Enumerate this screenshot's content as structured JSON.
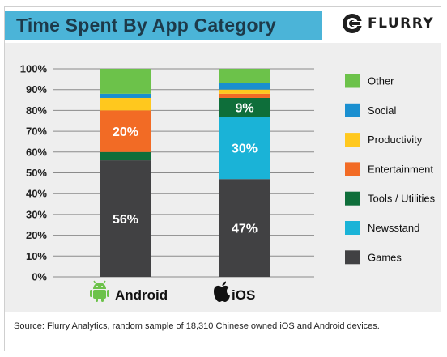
{
  "header": {
    "title": "Time Spent By App Category",
    "logo_text": "FLURRY"
  },
  "source": "Source: Flurry Analytics, random sample of 18,310 Chinese owned iOS and Android devices.",
  "icons": {
    "android": "android-icon",
    "ios": "apple-icon",
    "logo": "flurry-logo-icon"
  },
  "colors": {
    "Other": "#6cc24a",
    "Social": "#1a8fd0",
    "Productivity": "#ffc81e",
    "Entertainment": "#f26b25",
    "Tools / Utilities": "#0e6e3a",
    "Newsstand": "#1ab3d7",
    "Games": "#414143"
  },
  "chart_data": {
    "type": "bar",
    "stacked": true,
    "categories": [
      "Android",
      "iOS"
    ],
    "ylim": [
      0,
      100
    ],
    "yticks": [
      "0%",
      "10%",
      "20%",
      "30%",
      "40%",
      "50%",
      "60%",
      "70%",
      "80%",
      "90%",
      "100%"
    ],
    "grid": true,
    "legend_position": "right",
    "legend_order": [
      "Other",
      "Social",
      "Productivity",
      "Entertainment",
      "Tools / Utilities",
      "Newsstand",
      "Games"
    ],
    "series": [
      {
        "name": "Games",
        "values": [
          56,
          47
        ],
        "labels": [
          "56%",
          "47%"
        ]
      },
      {
        "name": "Newsstand",
        "values": [
          0,
          30
        ],
        "labels": [
          "",
          "30%"
        ]
      },
      {
        "name": "Tools / Utilities",
        "values": [
          4,
          9
        ],
        "labels": [
          "",
          "9%"
        ]
      },
      {
        "name": "Entertainment",
        "values": [
          20,
          2
        ],
        "labels": [
          "20%",
          ""
        ]
      },
      {
        "name": "Productivity",
        "values": [
          6,
          2
        ],
        "labels": [
          "",
          ""
        ]
      },
      {
        "name": "Social",
        "values": [
          2,
          3
        ],
        "labels": [
          "",
          ""
        ]
      },
      {
        "name": "Other",
        "values": [
          12,
          7
        ],
        "labels": [
          "",
          ""
        ]
      }
    ]
  }
}
